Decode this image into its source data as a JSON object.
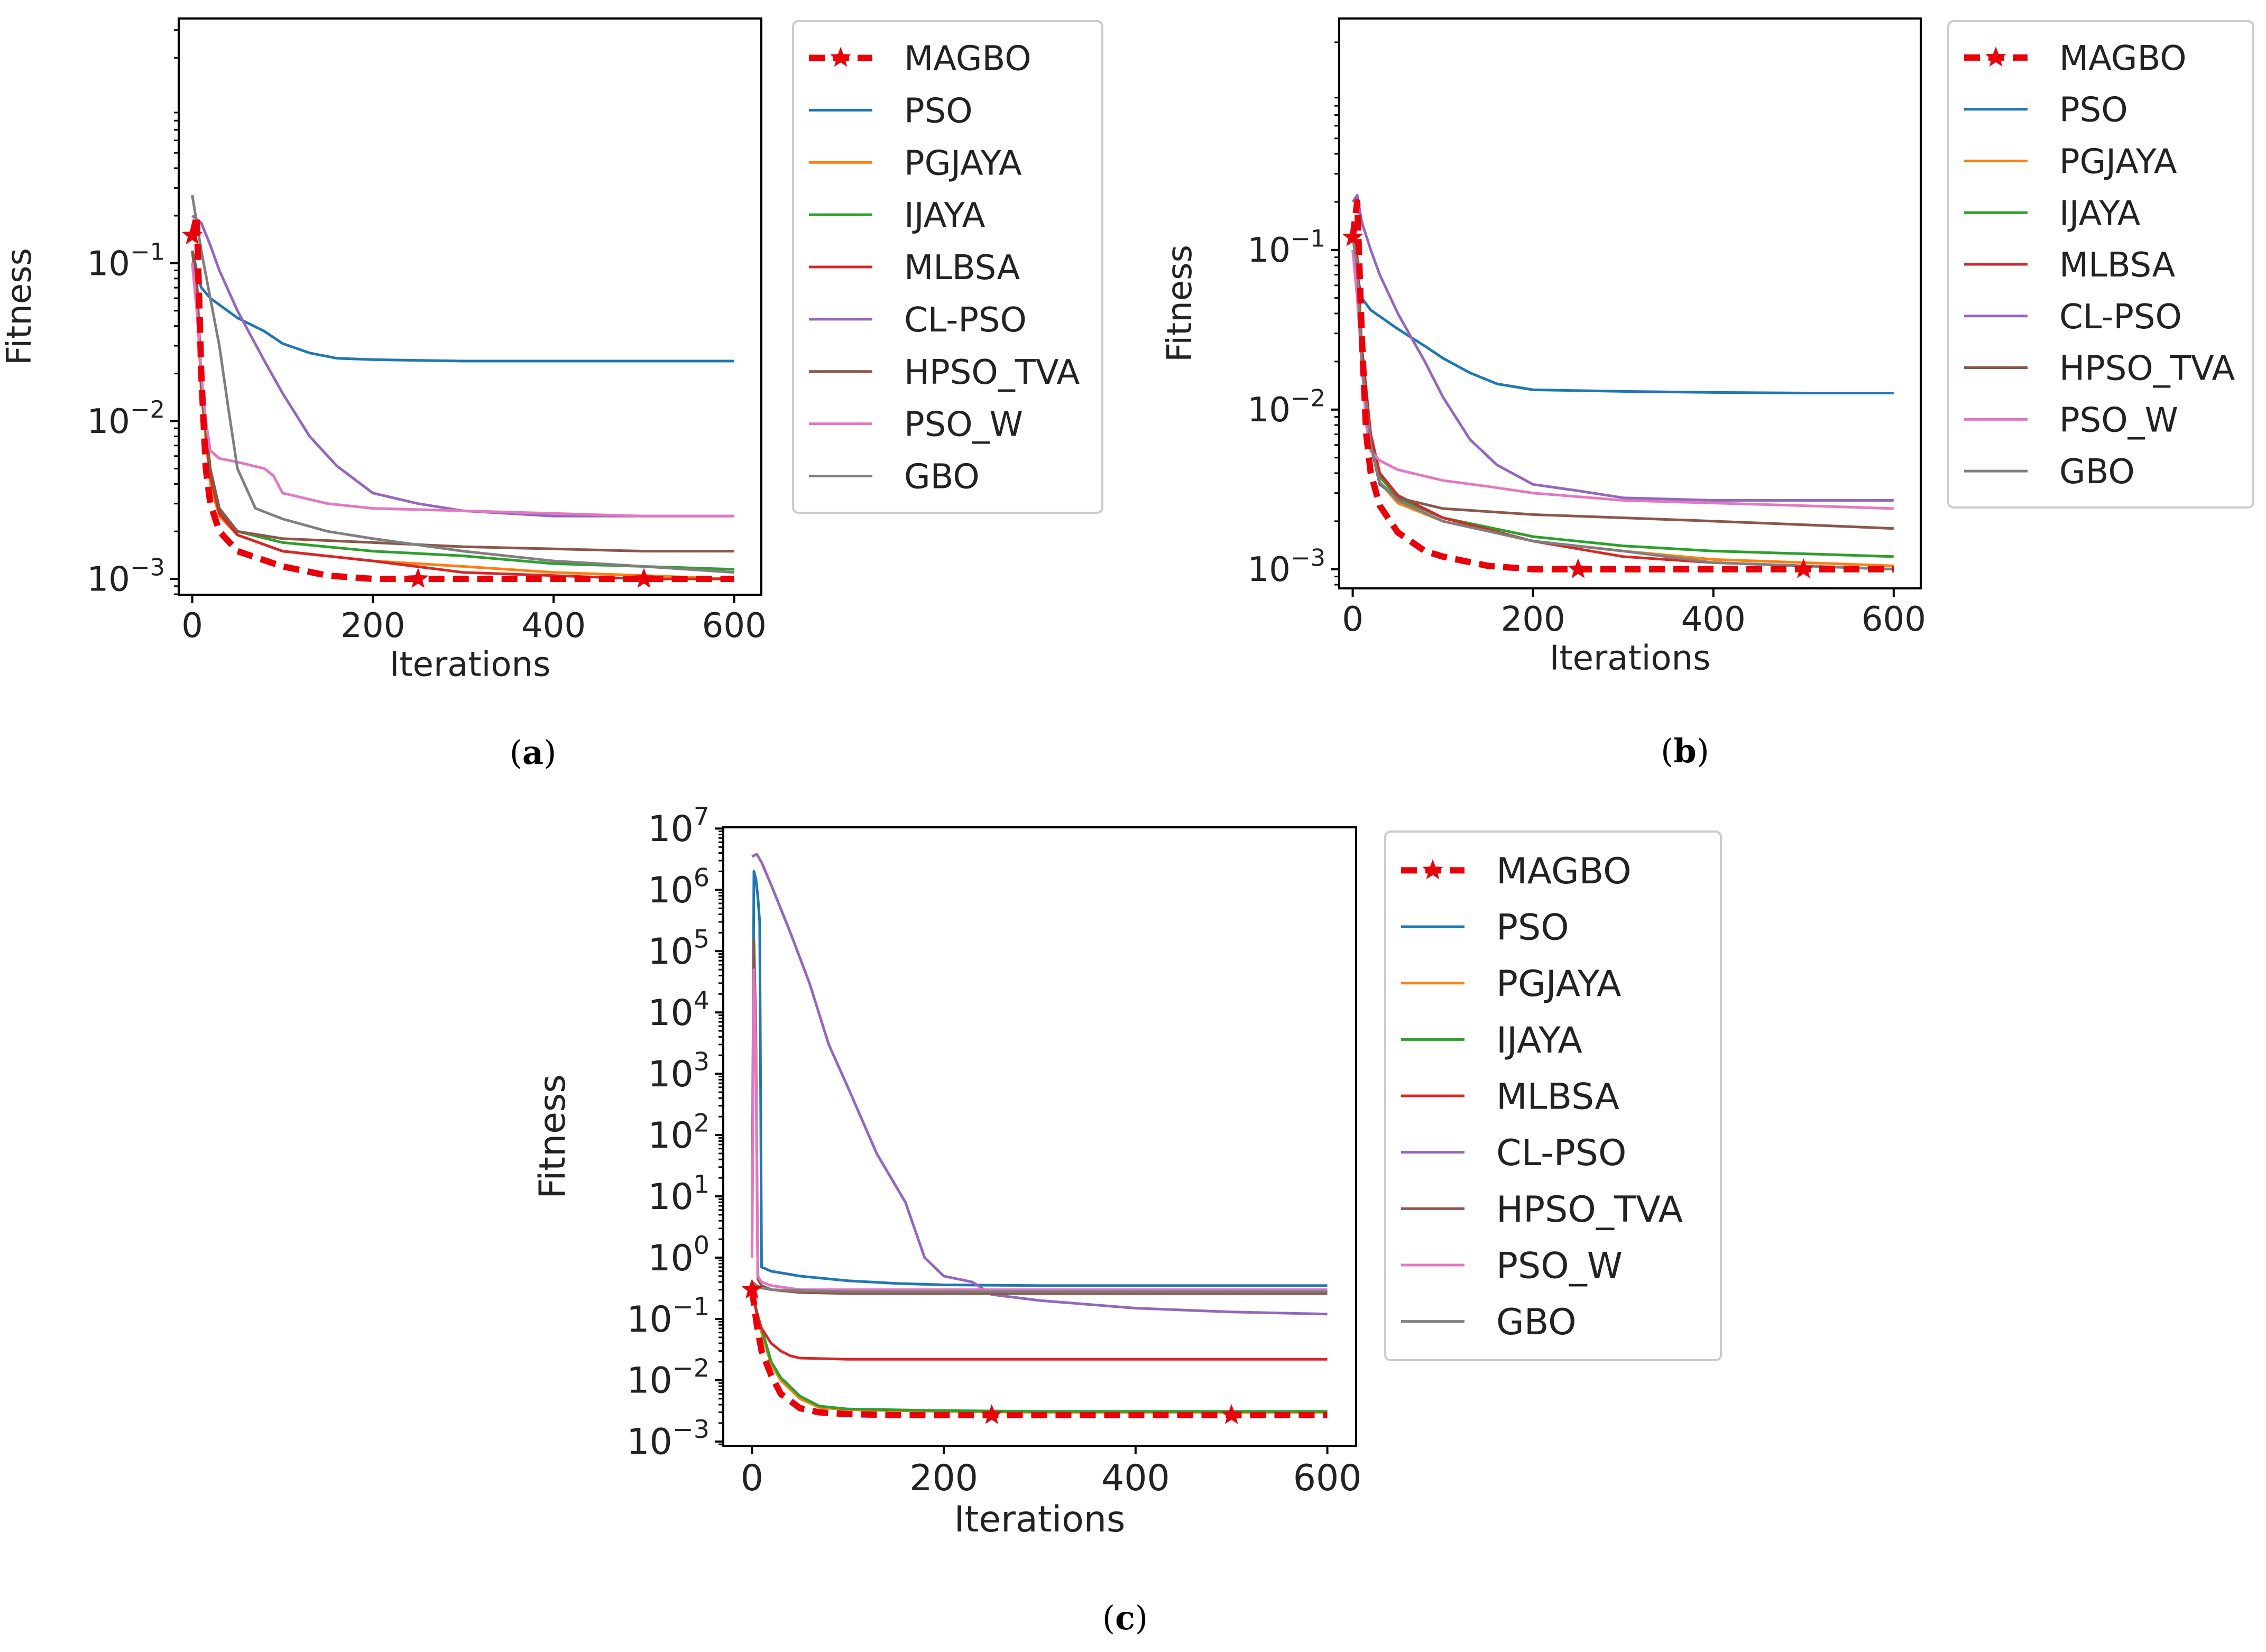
{
  "figure": {
    "captions": [
      "(a)",
      "(b)",
      "(c)"
    ]
  },
  "styles": {
    "MAGBO": "#e8000b",
    "PSO": "#1f77b4",
    "PGJAYA": "#ff7f0e",
    "IJAYA": "#2ca02c",
    "MLBSA": "#d62728",
    "CL-PSO": "#9467bd",
    "HPSO_TVA": "#8c564b",
    "PSO_W": "#e377c2",
    "GBO": "#7f7f7f"
  },
  "chart_data": [
    {
      "type": "line",
      "id": "a",
      "caption": "(a)",
      "xlabel": "Iterations",
      "ylabel": "Fitness",
      "yscale": "log",
      "xlim": [
        -15,
        630
      ],
      "ylim_log10": [
        -3.1,
        0.55
      ],
      "xticks": [
        0,
        200,
        400,
        600
      ],
      "xtick_labels": [
        "0",
        "200",
        "400",
        "600"
      ],
      "yticks_exp": [
        -1,
        -2,
        -3
      ],
      "ytick_bases": [
        "10",
        "10",
        "10"
      ],
      "ytick_exps": [
        "−1",
        "−2",
        "−3"
      ],
      "legend": [
        "MAGBO",
        "PSO",
        "PGJAYA",
        "IJAYA",
        "MLBSA",
        "CL-PSO",
        "HPSO_TVA",
        "PSO_W",
        "GBO"
      ],
      "series": [
        {
          "name": "MAGBO",
          "x": [
            0,
            5,
            10,
            15,
            20,
            30,
            50,
            100,
            150,
            200,
            250,
            300,
            400,
            500,
            600
          ],
          "y": [
            0.15,
            0.2,
            0.02,
            0.005,
            0.003,
            0.002,
            0.0015,
            0.0012,
            0.00105,
            0.001,
            0.001,
            0.001,
            0.001,
            0.001,
            0.001
          ]
        },
        {
          "name": "PSO",
          "x": [
            0,
            5,
            10,
            20,
            50,
            80,
            100,
            130,
            160,
            200,
            300,
            400,
            500,
            600
          ],
          "y": [
            0.12,
            0.09,
            0.07,
            0.06,
            0.045,
            0.037,
            0.031,
            0.027,
            0.025,
            0.0245,
            0.024,
            0.024,
            0.024,
            0.024
          ]
        },
        {
          "name": "PGJAYA",
          "x": [
            0,
            5,
            10,
            20,
            30,
            50,
            100,
            200,
            300,
            400,
            500,
            600
          ],
          "y": [
            0.12,
            0.07,
            0.015,
            0.004,
            0.0025,
            0.0019,
            0.0015,
            0.0013,
            0.0012,
            0.0011,
            0.00105,
            0.001
          ]
        },
        {
          "name": "IJAYA",
          "x": [
            0,
            5,
            10,
            20,
            30,
            50,
            100,
            200,
            300,
            400,
            500,
            600
          ],
          "y": [
            0.12,
            0.07,
            0.016,
            0.0045,
            0.0027,
            0.002,
            0.0017,
            0.0015,
            0.0014,
            0.00125,
            0.0012,
            0.00115
          ]
        },
        {
          "name": "MLBSA",
          "x": [
            0,
            5,
            10,
            20,
            30,
            50,
            100,
            200,
            300,
            400,
            500,
            600
          ],
          "y": [
            0.12,
            0.08,
            0.018,
            0.0045,
            0.0026,
            0.0019,
            0.0015,
            0.0013,
            0.0011,
            0.00105,
            0.001,
            0.001
          ]
        },
        {
          "name": "CL-PSO",
          "x": [
            0,
            10,
            20,
            30,
            50,
            80,
            100,
            130,
            160,
            200,
            250,
            300,
            400,
            500,
            600
          ],
          "y": [
            0.2,
            0.18,
            0.13,
            0.09,
            0.05,
            0.024,
            0.015,
            0.008,
            0.0052,
            0.0035,
            0.003,
            0.0027,
            0.0025,
            0.0025,
            0.0025
          ]
        },
        {
          "name": "HPSO_TVA",
          "x": [
            0,
            5,
            10,
            20,
            30,
            50,
            100,
            200,
            300,
            400,
            500,
            600
          ],
          "y": [
            0.12,
            0.07,
            0.017,
            0.005,
            0.0028,
            0.002,
            0.0018,
            0.0017,
            0.0016,
            0.00155,
            0.0015,
            0.0015
          ]
        },
        {
          "name": "PSO_W",
          "x": [
            0,
            5,
            10,
            15,
            20,
            30,
            50,
            80,
            90,
            100,
            150,
            200,
            300,
            400,
            500,
            600
          ],
          "y": [
            0.1,
            0.05,
            0.02,
            0.01,
            0.0065,
            0.0058,
            0.0055,
            0.005,
            0.0045,
            0.0035,
            0.003,
            0.0028,
            0.0027,
            0.0026,
            0.0025,
            0.0025
          ]
        },
        {
          "name": "GBO",
          "x": [
            0,
            5,
            10,
            20,
            30,
            40,
            50,
            70,
            100,
            150,
            200,
            300,
            400,
            500,
            600
          ],
          "y": [
            0.27,
            0.18,
            0.12,
            0.06,
            0.03,
            0.012,
            0.005,
            0.0028,
            0.0024,
            0.002,
            0.0018,
            0.0015,
            0.0013,
            0.0012,
            0.0011
          ]
        }
      ]
    },
    {
      "type": "line",
      "id": "b",
      "caption": "(b)",
      "xlabel": "Iterations",
      "ylabel": "Fitness",
      "yscale": "log",
      "xlim": [
        -15,
        630
      ],
      "ylim_log10": [
        -3.12,
        0.45
      ],
      "xticks": [
        0,
        200,
        400,
        600
      ],
      "xtick_labels": [
        "0",
        "200",
        "400",
        "600"
      ],
      "yticks_exp": [
        -1,
        -2,
        -3
      ],
      "ytick_bases": [
        "10",
        "10",
        "10"
      ],
      "ytick_exps": [
        "−1",
        "−2",
        "−3"
      ],
      "legend": [
        "MAGBO",
        "PSO",
        "PGJAYA",
        "IJAYA",
        "MLBSA",
        "CL-PSO",
        "HPSO_TVA",
        "PSO_W",
        "GBO"
      ],
      "series": [
        {
          "name": "MAGBO",
          "x": [
            0,
            5,
            10,
            15,
            20,
            30,
            50,
            80,
            100,
            150,
            200,
            250,
            300,
            400,
            500,
            600
          ],
          "y": [
            0.12,
            0.2,
            0.03,
            0.007,
            0.004,
            0.0025,
            0.0017,
            0.0013,
            0.0012,
            0.00105,
            0.001,
            0.001,
            0.001,
            0.001,
            0.001,
            0.001
          ]
        },
        {
          "name": "PSO",
          "x": [
            0,
            5,
            10,
            20,
            50,
            80,
            100,
            130,
            160,
            200,
            300,
            400,
            500,
            600
          ],
          "y": [
            0.1,
            0.07,
            0.05,
            0.042,
            0.032,
            0.025,
            0.021,
            0.017,
            0.0145,
            0.0133,
            0.013,
            0.0128,
            0.0127,
            0.0127
          ]
        },
        {
          "name": "PGJAYA",
          "x": [
            0,
            5,
            10,
            20,
            30,
            50,
            100,
            200,
            300,
            400,
            500,
            600
          ],
          "y": [
            0.12,
            0.08,
            0.02,
            0.006,
            0.0035,
            0.0026,
            0.002,
            0.0015,
            0.0013,
            0.00115,
            0.0011,
            0.00105
          ]
        },
        {
          "name": "IJAYA",
          "x": [
            0,
            5,
            10,
            20,
            30,
            50,
            100,
            200,
            300,
            400,
            500,
            600
          ],
          "y": [
            0.12,
            0.08,
            0.022,
            0.0065,
            0.0038,
            0.0028,
            0.0021,
            0.0016,
            0.0014,
            0.0013,
            0.00125,
            0.0012
          ]
        },
        {
          "name": "MLBSA",
          "x": [
            0,
            5,
            10,
            20,
            30,
            50,
            100,
            200,
            300,
            400,
            500,
            600
          ],
          "y": [
            0.12,
            0.09,
            0.025,
            0.007,
            0.004,
            0.0029,
            0.0021,
            0.0015,
            0.0012,
            0.0011,
            0.00105,
            0.001
          ]
        },
        {
          "name": "CL-PSO",
          "x": [
            0,
            5,
            10,
            20,
            30,
            50,
            80,
            100,
            130,
            160,
            200,
            250,
            300,
            400,
            500,
            600
          ],
          "y": [
            0.2,
            0.22,
            0.15,
            0.1,
            0.07,
            0.04,
            0.02,
            0.012,
            0.0065,
            0.0045,
            0.0034,
            0.0031,
            0.0028,
            0.0027,
            0.0027,
            0.0027
          ]
        },
        {
          "name": "HPSO_TVA",
          "x": [
            0,
            5,
            10,
            20,
            30,
            50,
            100,
            200,
            300,
            400,
            500,
            600
          ],
          "y": [
            0.12,
            0.08,
            0.02,
            0.006,
            0.0034,
            0.0028,
            0.0024,
            0.0022,
            0.0021,
            0.002,
            0.0019,
            0.0018
          ]
        },
        {
          "name": "PSO_W",
          "x": [
            0,
            5,
            10,
            15,
            20,
            30,
            50,
            100,
            150,
            200,
            300,
            400,
            500,
            600
          ],
          "y": [
            0.1,
            0.05,
            0.02,
            0.008,
            0.0055,
            0.0048,
            0.0042,
            0.0036,
            0.0033,
            0.003,
            0.0027,
            0.0026,
            0.0025,
            0.0024
          ]
        },
        {
          "name": "GBO",
          "x": [
            0,
            5,
            10,
            20,
            30,
            50,
            100,
            200,
            300,
            400,
            500,
            600
          ],
          "y": [
            0.12,
            0.08,
            0.02,
            0.006,
            0.0035,
            0.0027,
            0.002,
            0.0015,
            0.0013,
            0.0011,
            0.00105,
            0.001
          ]
        }
      ]
    },
    {
      "type": "line",
      "id": "c",
      "caption": "(c)",
      "xlabel": "Iterations",
      "ylabel": "Fitness",
      "yscale": "log",
      "xlim": [
        -30,
        630
      ],
      "ylim_log10": [
        -3.07,
        7.02
      ],
      "xticks": [
        0,
        200,
        400,
        600
      ],
      "xtick_labels": [
        "0",
        "200",
        "400",
        "600"
      ],
      "yticks_exp": [
        7,
        6,
        5,
        4,
        3,
        2,
        1,
        0,
        -1,
        -2,
        -3
      ],
      "ytick_bases": [
        "10",
        "10",
        "10",
        "10",
        "10",
        "10",
        "10",
        "10",
        "10",
        "10",
        "10"
      ],
      "ytick_exps": [
        "7",
        "6",
        "5",
        "4",
        "3",
        "2",
        "1",
        "0",
        "−1",
        "−2",
        "−3"
      ],
      "legend": [
        "MAGBO",
        "PSO",
        "PGJAYA",
        "IJAYA",
        "MLBSA",
        "CL-PSO",
        "HPSO_TVA",
        "PSO_W",
        "GBO"
      ],
      "series": [
        {
          "name": "MAGBO",
          "x": [
            0,
            5,
            10,
            20,
            30,
            50,
            70,
            100,
            150,
            200,
            300,
            400,
            500,
            600
          ],
          "y": [
            0.3,
            0.08,
            0.03,
            0.012,
            0.006,
            0.0035,
            0.003,
            0.0028,
            0.0027,
            0.0027,
            0.0027,
            0.0027,
            0.0027,
            0.0027
          ]
        },
        {
          "name": "PSO",
          "x": [
            0,
            2,
            4,
            6,
            8,
            10,
            20,
            50,
            100,
            150,
            200,
            300,
            400,
            500,
            600
          ],
          "y": [
            1.5,
            2000000,
            1500000,
            800000,
            300000,
            0.7,
            0.6,
            0.5,
            0.42,
            0.38,
            0.36,
            0.35,
            0.35,
            0.35,
            0.35
          ]
        },
        {
          "name": "PGJAYA",
          "x": [
            0,
            5,
            10,
            20,
            30,
            50,
            70,
            100,
            200,
            300,
            400,
            500,
            600
          ],
          "y": [
            0.3,
            0.12,
            0.06,
            0.018,
            0.01,
            0.005,
            0.0036,
            0.0033,
            0.0031,
            0.003,
            0.003,
            0.003,
            0.003
          ]
        },
        {
          "name": "IJAYA",
          "x": [
            0,
            5,
            10,
            20,
            30,
            50,
            70,
            100,
            200,
            300,
            400,
            500,
            600
          ],
          "y": [
            0.3,
            0.13,
            0.07,
            0.02,
            0.011,
            0.0055,
            0.0038,
            0.0034,
            0.0032,
            0.0031,
            0.0031,
            0.0031,
            0.0031
          ]
        },
        {
          "name": "MLBSA",
          "x": [
            0,
            5,
            10,
            20,
            30,
            40,
            50,
            100,
            200,
            300,
            400,
            500,
            600
          ],
          "y": [
            0.3,
            0.12,
            0.07,
            0.04,
            0.03,
            0.025,
            0.023,
            0.022,
            0.022,
            0.022,
            0.022,
            0.022,
            0.022
          ]
        },
        {
          "name": "CL-PSO",
          "x": [
            0,
            5,
            10,
            20,
            40,
            60,
            80,
            100,
            130,
            160,
            180,
            200,
            230,
            250,
            300,
            400,
            500,
            600
          ],
          "y": [
            3500000,
            3800000,
            2800000,
            1200000,
            200000,
            30000,
            3000,
            600,
            50,
            8,
            1,
            0.5,
            0.4,
            0.25,
            0.2,
            0.15,
            0.13,
            0.12
          ]
        },
        {
          "name": "HPSO_TVA",
          "x": [
            0,
            2,
            4,
            6,
            10,
            20,
            50,
            100,
            200,
            300,
            400,
            500,
            600
          ],
          "y": [
            1.5,
            150000,
            5000,
            0.45,
            0.35,
            0.3,
            0.27,
            0.26,
            0.26,
            0.26,
            0.26,
            0.26,
            0.26
          ]
        },
        {
          "name": "PSO_W",
          "x": [
            0,
            2,
            4,
            6,
            10,
            20,
            50,
            100,
            200,
            300,
            400,
            500,
            600
          ],
          "y": [
            1,
            50000,
            2000,
            0.5,
            0.4,
            0.35,
            0.3,
            0.3,
            0.3,
            0.3,
            0.3,
            0.3,
            0.3
          ]
        },
        {
          "name": "GBO",
          "x": [
            0,
            5,
            10,
            20,
            50,
            100,
            200,
            300,
            400,
            500,
            600
          ],
          "y": [
            0.4,
            0.35,
            0.32,
            0.3,
            0.29,
            0.28,
            0.28,
            0.28,
            0.28,
            0.28,
            0.28
          ]
        }
      ]
    }
  ]
}
